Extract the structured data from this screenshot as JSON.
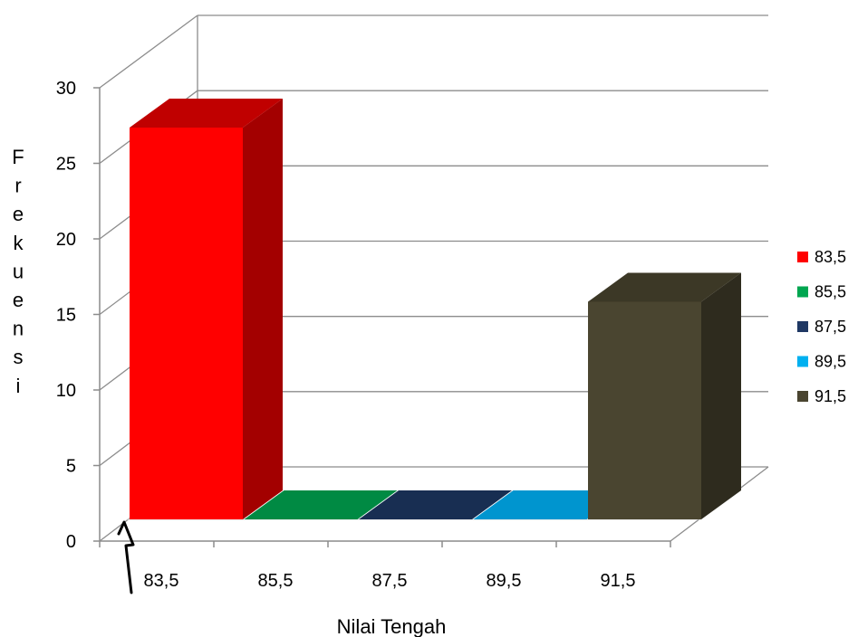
{
  "chart_data": {
    "type": "bar",
    "title": "",
    "xlabel": "Nilai Tengah",
    "ylabel": "Frekuensi",
    "ylim": [
      0,
      30
    ],
    "yticks": [
      0,
      5,
      10,
      15,
      20,
      25,
      30
    ],
    "categories": [
      "83,5",
      "85,5",
      "87,5",
      "89,5",
      "91,5"
    ],
    "values": [
      27,
      0,
      0,
      0,
      15
    ],
    "grid": true,
    "legend_position": "right",
    "three_d": true,
    "axis_break": true,
    "colors": [
      "#FF0000",
      "#00A650",
      "#1F3864",
      "#00B0F0",
      "#4A4530"
    ],
    "side_colors": [
      "#A30000",
      "#006B34",
      "#142541",
      "#0079A8",
      "#2E2B1E"
    ],
    "top_colors": [
      "#C00000",
      "#008A43",
      "#182E52",
      "#0095CF",
      "#3C3826"
    ],
    "legend": [
      {
        "label": "83,5"
      },
      {
        "label": "85,5"
      },
      {
        "label": "87,5"
      },
      {
        "label": "89,5"
      },
      {
        "label": "91,5"
      }
    ]
  }
}
